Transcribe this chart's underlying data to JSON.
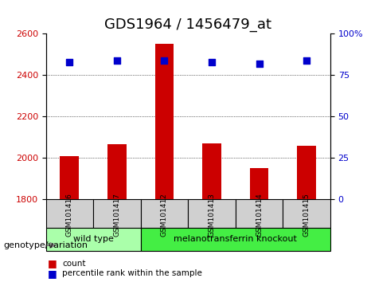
{
  "title": "GDS1964 / 1456479_at",
  "samples": [
    "GSM101416",
    "GSM101417",
    "GSM101412",
    "GSM101413",
    "GSM101414",
    "GSM101415"
  ],
  "bar_values": [
    2010,
    2065,
    2550,
    2070,
    1950,
    2060
  ],
  "percentile_values": [
    83,
    84,
    84,
    83,
    82,
    84
  ],
  "ylim_left": [
    1800,
    2600
  ],
  "ylim_right": [
    0,
    100
  ],
  "yticks_left": [
    1800,
    2000,
    2200,
    2400,
    2600
  ],
  "yticks_right": [
    0,
    25,
    50,
    75,
    100
  ],
  "bar_color": "#cc0000",
  "dot_color": "#0000cc",
  "grid_color": "#000000",
  "bg_color": "#ffffff",
  "genotype_groups": [
    {
      "label": "wild type",
      "samples": [
        "GSM101416",
        "GSM101417"
      ],
      "color": "#aaffaa"
    },
    {
      "label": "melanotransferrin knockout",
      "samples": [
        "GSM101412",
        "GSM101413",
        "GSM101414",
        "GSM101415"
      ],
      "color": "#44ee44"
    }
  ],
  "legend_items": [
    {
      "label": "count",
      "color": "#cc0000",
      "marker": "s"
    },
    {
      "label": "percentile rank within the sample",
      "color": "#0000cc",
      "marker": "s"
    }
  ],
  "xlabel_text": "genotype/variation",
  "title_fontsize": 13,
  "tick_label_fontsize": 8,
  "axis_label_fontsize": 9
}
